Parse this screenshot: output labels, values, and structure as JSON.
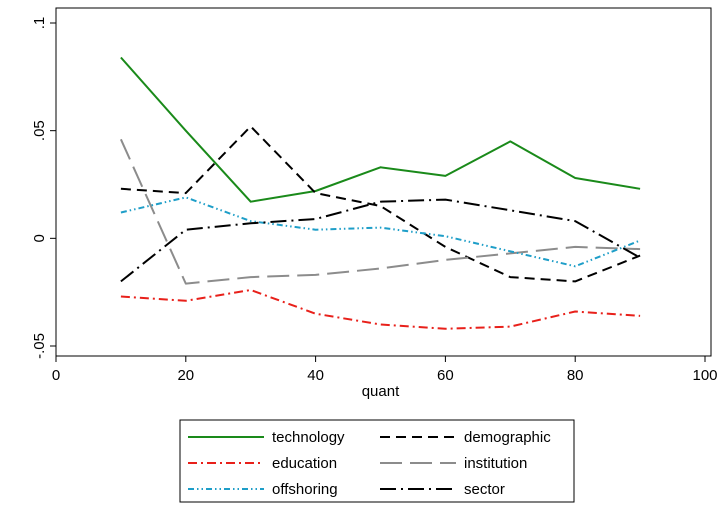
{
  "chart_data": {
    "type": "line",
    "title": "",
    "xlabel": "quant",
    "ylabel": "",
    "xlim": [
      0,
      100
    ],
    "ylim": [
      -0.05,
      0.1
    ],
    "xticks": [
      0,
      20,
      40,
      60,
      80,
      100
    ],
    "xtick_labels": [
      "0",
      "20",
      "40",
      "60",
      "80",
      "100"
    ],
    "yticks": [
      -0.05,
      0,
      0.05,
      0.1
    ],
    "ytick_labels": [
      "-.05",
      "0",
      ".05",
      ".1"
    ],
    "grid": false,
    "legend_position": "bottom",
    "x": [
      10,
      20,
      30,
      40,
      50,
      60,
      70,
      80,
      90
    ],
    "series": [
      {
        "name": "technology",
        "color": "#1a8a1a",
        "dash": "solid",
        "values": [
          0.084,
          0.05,
          0.017,
          0.022,
          0.033,
          0.029,
          0.045,
          0.028,
          0.023
        ]
      },
      {
        "name": "demographic",
        "color": "#000000",
        "dash": "dash",
        "values": [
          0.023,
          0.021,
          0.052,
          0.021,
          0.015,
          -0.004,
          -0.018,
          -0.02,
          -0.008
        ]
      },
      {
        "name": "education",
        "color": "#e8201a",
        "dash": "dashdot",
        "values": [
          -0.027,
          -0.029,
          -0.024,
          -0.035,
          -0.04,
          -0.042,
          -0.041,
          -0.034,
          -0.036
        ]
      },
      {
        "name": "institution",
        "color": "#8c8c8c",
        "dash": "longdash",
        "values": [
          0.046,
          -0.021,
          -0.018,
          -0.017,
          -0.014,
          -0.01,
          -0.007,
          -0.004,
          -0.005
        ]
      },
      {
        "name": "offshoring",
        "color": "#1e9ec8",
        "dash": "dashdotdot",
        "values": [
          0.012,
          0.019,
          0.008,
          0.004,
          0.005,
          0.001,
          -0.006,
          -0.013,
          -0.001
        ]
      },
      {
        "name": "sector",
        "color": "#000000",
        "dash": "longdashdot",
        "values": [
          -0.02,
          0.004,
          0.007,
          0.009,
          0.017,
          0.018,
          0.013,
          0.008,
          -0.009
        ]
      }
    ]
  }
}
